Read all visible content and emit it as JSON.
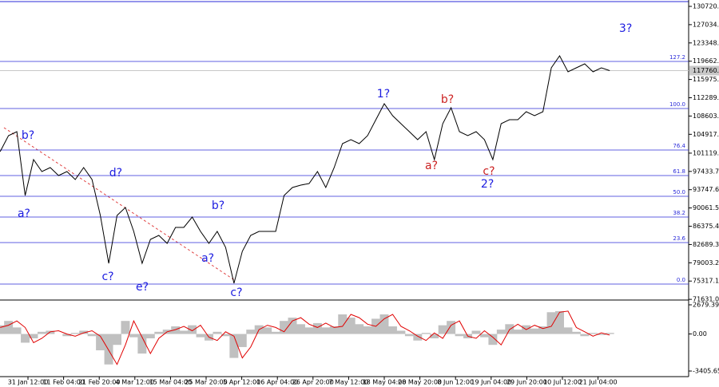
{
  "chart_data": [
    {
      "type": "line",
      "xlim": [
        -201,
        4747
      ],
      "ylim": [
        71652,
        132008
      ],
      "xticks": [
        {
          "value": 0,
          "label": "31 Jan 12:00"
        },
        {
          "value": 256,
          "label": "11 Feb 04:00"
        },
        {
          "value": 512,
          "label": "21 Feb 20:00"
        },
        {
          "value": 768,
          "label": "4 Mar 12:00"
        },
        {
          "value": 1024,
          "label": "15 Mar 04:00"
        },
        {
          "value": 1280,
          "label": "25 Mar 20:00"
        },
        {
          "value": 1536,
          "label": "5 Apr 12:00"
        },
        {
          "value": 1792,
          "label": "16 Apr 04:00"
        },
        {
          "value": 2048,
          "label": "26 Apr 20:00"
        },
        {
          "value": 2304,
          "label": "7 May 12:00"
        },
        {
          "value": 2560,
          "label": "18 May 04:00"
        },
        {
          "value": 2816,
          "label": "28 May 20:00"
        },
        {
          "value": 3072,
          "label": "8 Jun 12:00"
        },
        {
          "value": 3328,
          "label": "19 Jun 04:00"
        },
        {
          "value": 3584,
          "label": "29 Jun 20:00"
        },
        {
          "value": 3840,
          "label": "10 Jul 12:00"
        },
        {
          "value": 4096,
          "label": "21 Jul 04:00"
        }
      ],
      "yticks": [
        130720.38,
        127034.28,
        123348.18,
        119662.08,
        115975.98,
        112289.88,
        108603.78,
        104917.68,
        101119.88,
        97433.78,
        93747.68,
        90061.58,
        86375.48,
        82689.39,
        79003.28,
        75317.18,
        71631.08
      ],
      "current_price": 117760.89,
      "color": "#000000",
      "level_color": "#2b2bd9",
      "levels": [
        {
          "label": "127.2",
          "value": 119614
        },
        {
          "label": "100.0",
          "value": 110118
        },
        {
          "label": "76.4",
          "value": 101749
        },
        {
          "label": "61.8",
          "value": 96598
        },
        {
          "label": "50.0",
          "value": 92413
        },
        {
          "label": "38.2",
          "value": 88229
        },
        {
          "label": "23.6",
          "value": 83078
        },
        {
          "label": "0.0",
          "value": 74709
        }
      ],
      "x": [
        -200,
        -140,
        -80,
        -20,
        40,
        100,
        160,
        220,
        280,
        340,
        400,
        460,
        520,
        580,
        640,
        700,
        760,
        820,
        880,
        940,
        1000,
        1060,
        1120,
        1180,
        1240,
        1300,
        1360,
        1420,
        1480,
        1540,
        1600,
        1660,
        1720,
        1780,
        1840,
        1900,
        1960,
        2020,
        2080,
        2140,
        2200,
        2260,
        2320,
        2380,
        2440,
        2500,
        2560,
        2620,
        2680,
        2740,
        2800,
        2860,
        2920,
        2980,
        3040,
        3100,
        3160,
        3220,
        3280,
        3340,
        3400,
        3460,
        3520,
        3580,
        3640,
        3700,
        3760,
        3820,
        3880,
        3940,
        4000,
        4060,
        4120,
        4180
      ],
      "values": [
        101427,
        104646,
        105451,
        92575,
        99818,
        97403,
        98208,
        96599,
        97403,
        95794,
        98208,
        95794,
        88551,
        78894,
        88551,
        90161,
        85332,
        78894,
        83723,
        84527,
        82918,
        86137,
        86137,
        88229,
        85332,
        82918,
        85332,
        82113,
        74870,
        81308,
        84527,
        85332,
        85332,
        85332,
        92575,
        94184,
        94667,
        94989,
        97403,
        94184,
        98208,
        103037,
        103841,
        103037,
        104646,
        107865,
        111084,
        108670,
        107060,
        105451,
        103841,
        105451,
        99818,
        107060,
        110279,
        105451,
        104646,
        105451,
        103841,
        99818,
        107060,
        107865,
        107865,
        109475,
        108670,
        109475,
        118327,
        120741,
        117522,
        118327,
        119132,
        117522,
        118327,
        117760.89
      ],
      "annotations": [
        {
          "text": "b?",
          "x": 0,
          "y": 104646,
          "color": "#1c1ce0"
        },
        {
          "text": "a?",
          "x": -29,
          "y": 88873,
          "color": "#1c1ce0"
        },
        {
          "text": "d?",
          "x": 631,
          "y": 97081,
          "color": "#1c1ce0"
        },
        {
          "text": "c?",
          "x": 574,
          "y": 76158,
          "color": "#1c1ce0"
        },
        {
          "text": "e?",
          "x": 821,
          "y": 74066,
          "color": "#1c1ce0"
        },
        {
          "text": "b?",
          "x": 1366,
          "y": 90482,
          "color": "#1c1ce0"
        },
        {
          "text": "a?",
          "x": 1292,
          "y": 79860,
          "color": "#1c1ce0"
        },
        {
          "text": "c?",
          "x": 1498,
          "y": 72939,
          "color": "#1c1ce0"
        },
        {
          "text": "1?",
          "x": 2554,
          "y": 113015,
          "color": "#1c1ce0"
        },
        {
          "text": "b?",
          "x": 3014,
          "y": 111889,
          "color": "#cc2222"
        },
        {
          "text": "a?",
          "x": 2899,
          "y": 98530,
          "color": "#cc2222"
        },
        {
          "text": "c?",
          "x": 3312,
          "y": 97403,
          "color": "#cc2222"
        },
        {
          "text": "2?",
          "x": 3301,
          "y": 94828,
          "color": "#1c1ce0"
        },
        {
          "text": "3?",
          "x": 4294,
          "y": 126213,
          "color": "#1c1ce0"
        }
      ]
    },
    {
      "type": "oscillator",
      "xlim": [
        -201,
        4747
      ],
      "ylim": [
        -3918,
        3046
      ],
      "yticks": [
        2679.392,
        {
          "value": 0,
          "label": "0.00"
        },
        -3405.651
      ],
      "x": [
        -200,
        -140,
        -80,
        -20,
        40,
        100,
        160,
        220,
        280,
        340,
        400,
        460,
        520,
        580,
        640,
        700,
        760,
        820,
        880,
        940,
        1000,
        1060,
        1120,
        1180,
        1240,
        1300,
        1360,
        1420,
        1480,
        1540,
        1600,
        1660,
        1720,
        1780,
        1840,
        1900,
        1960,
        2020,
        2080,
        2140,
        2200,
        2260,
        2320,
        2380,
        2440,
        2500,
        2560,
        2620,
        2680,
        2740,
        2800,
        2860,
        2920,
        2980,
        3040,
        3100,
        3160,
        3220,
        3280,
        3340,
        3400,
        3460,
        3520,
        3580,
        3640,
        3700,
        3760,
        3820,
        3880,
        3940,
        4000,
        4060,
        4120,
        4180
      ],
      "series": [
        {
          "color": "#c0c0c0",
          "values": [
            800,
            1200,
            600,
            -800,
            -400,
            200,
            300,
            0,
            -200,
            100,
            300,
            -200,
            -1500,
            -2800,
            -1000,
            1200,
            -300,
            -1800,
            -400,
            200,
            400,
            700,
            300,
            800,
            -300,
            -600,
            200,
            -200,
            -2200,
            -1200,
            400,
            800,
            600,
            200,
            1200,
            1500,
            900,
            600,
            1000,
            600,
            700,
            1800,
            1500,
            900,
            700,
            1400,
            1800,
            700,
            300,
            -200,
            -600,
            100,
            -400,
            800,
            1200,
            -200,
            -400,
            300,
            -300,
            -1000,
            400,
            900,
            400,
            800,
            500,
            700,
            2000,
            2100,
            600,
            200,
            -200,
            100,
            -100,
            100
          ]
        },
        {
          "color": "#e00000",
          "values": [
            600,
            800,
            1200,
            600,
            -800,
            -400,
            200,
            300,
            0,
            -200,
            100,
            300,
            -200,
            -1500,
            -2800,
            -1000,
            1200,
            -300,
            -1800,
            -400,
            200,
            400,
            700,
            300,
            800,
            -300,
            -600,
            200,
            -200,
            -2200,
            -1200,
            400,
            800,
            600,
            200,
            1200,
            1500,
            900,
            600,
            1000,
            600,
            700,
            1800,
            1500,
            900,
            700,
            1400,
            1800,
            700,
            300,
            -200,
            -600,
            100,
            -400,
            800,
            1200,
            -200,
            -400,
            300,
            -300,
            -1000,
            400,
            900,
            400,
            800,
            500,
            700,
            2000,
            2100,
            600,
            200,
            -200,
            100,
            -100
          ]
        }
      ]
    }
  ]
}
